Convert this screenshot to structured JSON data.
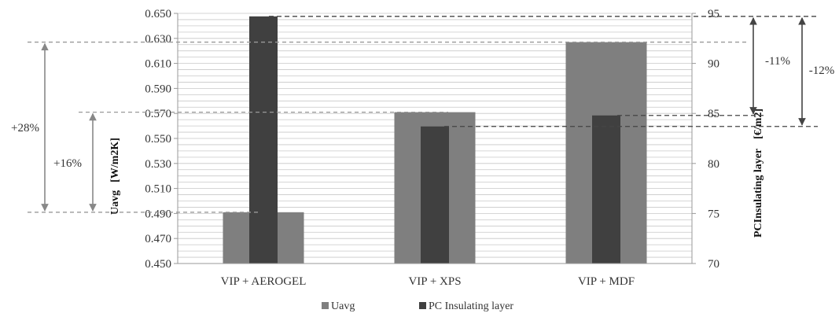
{
  "chart_data": {
    "type": "bar",
    "categories": [
      "VIP + AEROGEL",
      "VIP + XPS",
      "VIP + MDF"
    ],
    "series": [
      {
        "name": "Uavg",
        "axis": "left",
        "color": "#7f7f7f",
        "values": [
          0.491,
          0.571,
          0.627
        ]
      },
      {
        "name": "PC Insulating layer",
        "axis": "right",
        "color": "#404040",
        "values": [
          94.7,
          83.7,
          84.8
        ]
      }
    ],
    "left_axis": {
      "label_u": "Uavg",
      "label_unit": "[W/m2K]",
      "ylim": [
        0.45,
        0.65
      ],
      "ticks": [
        "0.650",
        "0.630",
        "0.610",
        "0.590",
        "0.570",
        "0.550",
        "0.530",
        "0.510",
        "0.490",
        "0.470",
        "0.450"
      ]
    },
    "right_axis": {
      "label_main": "PCInsulating layer",
      "label_unit": "[€/m2]",
      "ylim": [
        70,
        95
      ],
      "ticks": [
        "95",
        "90",
        "85",
        "80",
        "75",
        "70"
      ]
    },
    "grid": true,
    "legend_position": "bottom",
    "annotations": [
      {
        "text": "+28%",
        "from": 0.491,
        "to": 0.627,
        "axis": "left"
      },
      {
        "text": "+16%",
        "from": 0.491,
        "to": 0.571,
        "axis": "left"
      },
      {
        "text": "-11%",
        "from": 94.7,
        "to": 84.8,
        "axis": "right"
      },
      {
        "text": "-12%",
        "from": 94.7,
        "to": 83.7,
        "axis": "right"
      }
    ]
  }
}
